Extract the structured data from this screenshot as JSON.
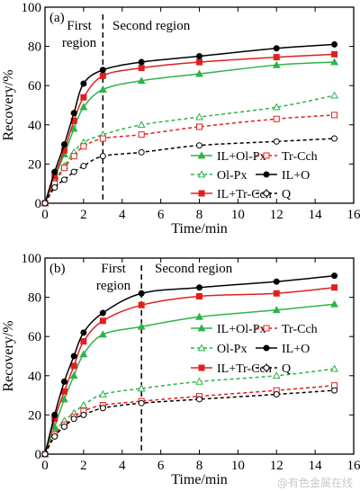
{
  "watermark": "@有色金属在线",
  "chart_data": [
    {
      "type": "line",
      "panel_label": "(a)",
      "xlabel": "Time/min",
      "ylabel": "Recovery/%",
      "xlim": [
        0,
        16
      ],
      "ylim": [
        0,
        100
      ],
      "xticks": [
        "0",
        "2",
        "4",
        "6",
        "8",
        "10",
        "12",
        "14",
        "16"
      ],
      "yticks": [
        "0",
        "20",
        "40",
        "60",
        "80",
        "100"
      ],
      "divider_x": 3,
      "region_labels": {
        "first": [
          "First",
          "region"
        ],
        "second": "Second region"
      },
      "legend_placement": "center-right",
      "x": [
        0,
        0.5,
        1,
        1.5,
        2,
        3,
        5,
        8,
        12,
        15
      ],
      "series": [
        {
          "name": "IL+Ol-Px",
          "color": "#2db34a",
          "dash": false,
          "marker": "triangle-filled",
          "values": [
            0,
            13,
            25,
            38,
            49,
            58,
            62.5,
            66,
            70.5,
            72
          ]
        },
        {
          "name": "Ol-Px",
          "color": "#2db34a",
          "dash": true,
          "marker": "triangle-open",
          "values": [
            0,
            11,
            19,
            26,
            31,
            35,
            40,
            44,
            49,
            55
          ]
        },
        {
          "name": "IL+Tr-Cch",
          "color": "#e02020",
          "dash": false,
          "marker": "square-filled",
          "values": [
            0,
            14,
            27,
            42,
            54,
            65,
            69,
            72,
            74.5,
            76
          ]
        },
        {
          "name": "Tr-Cch",
          "color": "#e02020",
          "dash": true,
          "marker": "square-open",
          "values": [
            0,
            10,
            18,
            24,
            29,
            33,
            35,
            39,
            43,
            45
          ]
        },
        {
          "name": "IL+O",
          "color": "#000000",
          "dash": false,
          "marker": "circle-filled",
          "values": [
            0,
            16,
            30,
            46,
            61,
            68,
            72,
            75,
            79,
            81
          ]
        },
        {
          "name": "Q",
          "color": "#000000",
          "dash": true,
          "marker": "circle-open",
          "values": [
            0,
            8,
            12,
            16,
            19,
            24,
            26,
            29.5,
            31.5,
            33
          ]
        }
      ]
    },
    {
      "type": "line",
      "panel_label": "(b)",
      "xlabel": "Time/min",
      "ylabel": "Recovery/%",
      "xlim": [
        0,
        16
      ],
      "ylim": [
        0,
        100
      ],
      "xticks": [
        "0",
        "2",
        "4",
        "6",
        "8",
        "10",
        "12",
        "14",
        "16"
      ],
      "yticks": [
        "0",
        "20",
        "40",
        "60",
        "80",
        "100"
      ],
      "divider_x": 5,
      "region_labels": {
        "first": [
          "First",
          "region"
        ],
        "second": "Second region"
      },
      "legend_placement": "center-right",
      "x": [
        0,
        0.5,
        1,
        1.5,
        2,
        3,
        5,
        8,
        12,
        15
      ],
      "series": [
        {
          "name": "IL+Ol-Px",
          "color": "#2db34a",
          "dash": false,
          "marker": "triangle-filled",
          "values": [
            0,
            14,
            28,
            40,
            51,
            61,
            65,
            70,
            73.5,
            76.5
          ]
        },
        {
          "name": "Ol-Px",
          "color": "#2db34a",
          "dash": true,
          "marker": "triangle-open",
          "values": [
            0,
            11,
            17,
            21,
            25,
            30.5,
            33.5,
            37,
            40,
            43.5
          ]
        },
        {
          "name": "IL+Tr-Cch",
          "color": "#e02020",
          "dash": false,
          "marker": "square-filled",
          "values": [
            0,
            18,
            32,
            45,
            57.5,
            68,
            76,
            80.5,
            82,
            85
          ]
        },
        {
          "name": "Tr-Cch",
          "color": "#e02020",
          "dash": true,
          "marker": "square-open",
          "values": [
            0,
            10,
            15,
            19,
            22,
            25,
            27,
            29.5,
            32.5,
            35
          ]
        },
        {
          "name": "IL+O",
          "color": "#000000",
          "dash": false,
          "marker": "circle-filled",
          "values": [
            0,
            20,
            37,
            50,
            62,
            72,
            82,
            85,
            88,
            91
          ]
        },
        {
          "name": "Q",
          "color": "#000000",
          "dash": true,
          "marker": "circle-open",
          "values": [
            0,
            9,
            14,
            18,
            20,
            23.5,
            26,
            28,
            30.5,
            32.5
          ]
        }
      ]
    }
  ]
}
